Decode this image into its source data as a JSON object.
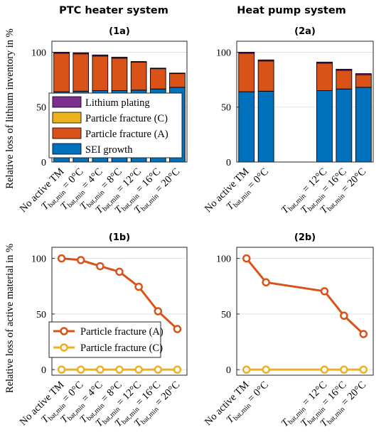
{
  "column_titles": [
    "PTC heater system",
    "Heat pump system"
  ],
  "colors": {
    "sei": "#0072BD",
    "fracture_a": "#D95319",
    "fracture_c": "#EDB120",
    "plating": "#7E2F8E",
    "axis": "#262626",
    "grid": "#dcdcdc"
  },
  "category_labels": {
    "no_tm": "No active TM",
    "t0": "T_bat,min = 0°C",
    "t4": "T_bat,min = 4°C",
    "t8": "T_bat,min = 8°C",
    "t12": "T_bat,min = 12°C",
    "t16": "T_bat,min = 16°C",
    "t20": "T_bat,min = 20°C"
  },
  "chart_data": [
    {
      "id": "1a",
      "title": "(1a)",
      "type": "bar",
      "stacked": true,
      "ylabel": "Relative loss of lithium inventory in %",
      "ylim": [
        0,
        110
      ],
      "yticks": [
        0,
        50,
        100
      ],
      "categories": [
        "No active TM",
        "T_bat,min = 0°C",
        "T_bat,min = 4°C",
        "T_bat,min = 8°C",
        "T_bat,min = 12°C",
        "T_bat,min = 16°C",
        "T_bat,min = 20°C"
      ],
      "series": [
        {
          "name": "SEI growth",
          "values": [
            64,
            64.5,
            65,
            65,
            65.5,
            66.5,
            68
          ]
        },
        {
          "name": "Particle fracture (A)",
          "values": [
            35,
            34,
            31.5,
            29.5,
            25.5,
            18.5,
            12.5
          ]
        },
        {
          "name": "Particle fracture (C)",
          "values": [
            0,
            0,
            0,
            0,
            0,
            0,
            0
          ]
        },
        {
          "name": "Lithium plating",
          "values": [
            1,
            1,
            1,
            1,
            0.5,
            0.5,
            0.5
          ]
        }
      ],
      "legend": [
        "Lithium plating",
        "Particle fracture (C)",
        "Particle fracture (A)",
        "SEI growth"
      ],
      "legend_position": "lower-left"
    },
    {
      "id": "2a",
      "title": "(2a)",
      "type": "bar",
      "stacked": true,
      "ylim": [
        0,
        110
      ],
      "yticks": [
        0,
        50,
        100
      ],
      "categories": [
        "No active TM",
        "T_bat,min = 0°C",
        "",
        "",
        "T_bat,min = 12°C",
        "T_bat,min = 16°C",
        "T_bat,min = 20°C"
      ],
      "series": [
        {
          "name": "SEI growth",
          "values": [
            64,
            64.5,
            null,
            null,
            65,
            66.5,
            68
          ]
        },
        {
          "name": "Particle fracture (A)",
          "values": [
            35,
            27.5,
            null,
            null,
            25,
            17,
            11.5
          ]
        },
        {
          "name": "Particle fracture (C)",
          "values": [
            0,
            0,
            null,
            null,
            0,
            0,
            0
          ]
        },
        {
          "name": "Lithium plating",
          "values": [
            1,
            1,
            null,
            null,
            1,
            1,
            1
          ]
        }
      ]
    },
    {
      "id": "1b",
      "title": "(1b)",
      "type": "line",
      "ylabel": "Relative loss of active material in %",
      "ylim": [
        -5,
        110
      ],
      "yticks": [
        0,
        50,
        100
      ],
      "categories": [
        "No active TM",
        "T_bat,min = 0°C",
        "T_bat,min = 4°C",
        "T_bat,min = 8°C",
        "T_bat,min = 12°C",
        "T_bat,min = 16°C",
        "T_bat,min = 20°C"
      ],
      "series": [
        {
          "name": "Particle fracture (A)",
          "values": [
            100,
            98.5,
            93,
            88,
            74.5,
            52.5,
            36.5
          ]
        },
        {
          "name": "Particle fracture (C)",
          "values": [
            0,
            0,
            0,
            0,
            0,
            0,
            0
          ]
        }
      ],
      "legend": [
        "Particle fracture (A)",
        "Particle fracture (C)"
      ],
      "legend_position": "lower-left"
    },
    {
      "id": "2b",
      "title": "(2b)",
      "type": "line",
      "ylim": [
        -5,
        110
      ],
      "yticks": [
        0,
        50,
        100
      ],
      "categories": [
        "No active TM",
        "T_bat,min = 0°C",
        "",
        "",
        "T_bat,min = 12°C",
        "T_bat,min = 16°C",
        "T_bat,min = 20°C"
      ],
      "series": [
        {
          "name": "Particle fracture (A)",
          "values": [
            100,
            78.5,
            null,
            null,
            70.5,
            48.5,
            32
          ]
        },
        {
          "name": "Particle fracture (C)",
          "values": [
            0,
            0,
            null,
            null,
            0,
            0,
            0
          ]
        }
      ]
    }
  ]
}
